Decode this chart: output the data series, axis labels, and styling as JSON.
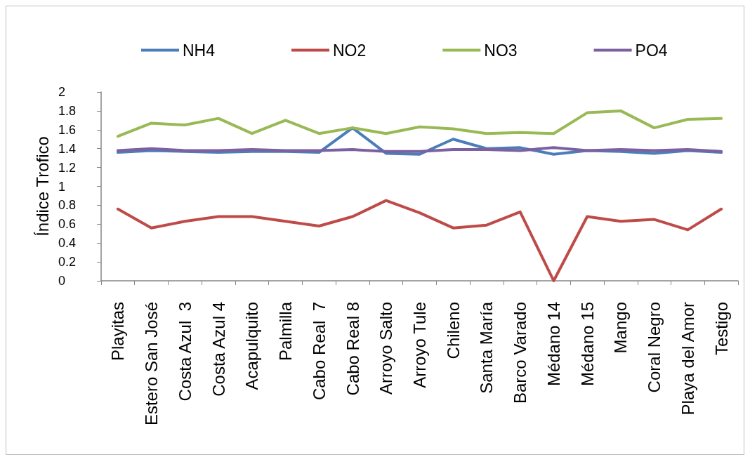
{
  "chart_data": {
    "type": "line",
    "ylabel": "Índice Trofico",
    "categories": [
      "Playitas",
      "Estero San José",
      "Costa Azul  3",
      "Costa Azul 4",
      "Acapulquito",
      "Palmilla",
      "Cabo Real  7",
      "Cabo Real 8",
      "Arroyo Salto",
      "Arroyo Tule",
      "Chileno",
      "Santa María",
      "Barco Varado",
      "Médano 14",
      "Médano 15",
      "Mango",
      "Coral Negro",
      "Playa del Amor",
      "Testigo"
    ],
    "series": [
      {
        "name": "NH4",
        "color": "#4a7ebb",
        "values": [
          1.36,
          1.38,
          1.37,
          1.36,
          1.37,
          1.37,
          1.36,
          1.62,
          1.35,
          1.34,
          1.5,
          1.4,
          1.41,
          1.34,
          1.38,
          1.37,
          1.35,
          1.38,
          1.36
        ]
      },
      {
        "name": "NO2",
        "color": "#be4b48",
        "values": [
          0.76,
          0.56,
          0.63,
          0.68,
          0.68,
          0.63,
          0.58,
          0.68,
          0.85,
          0.72,
          0.56,
          0.59,
          0.73,
          0,
          0.68,
          0.63,
          0.65,
          0.54,
          0.76
        ]
      },
      {
        "name": "NO3",
        "color": "#98b954",
        "values": [
          1.53,
          1.67,
          1.65,
          1.72,
          1.56,
          1.7,
          1.56,
          1.62,
          1.56,
          1.63,
          1.61,
          1.56,
          1.57,
          1.56,
          1.78,
          1.8,
          1.62,
          1.71,
          1.72
        ]
      },
      {
        "name": "PO4",
        "color": "#7d60a0",
        "values": [
          1.38,
          1.4,
          1.38,
          1.38,
          1.39,
          1.38,
          1.38,
          1.39,
          1.37,
          1.37,
          1.39,
          1.39,
          1.38,
          1.41,
          1.38,
          1.39,
          1.38,
          1.39,
          1.37
        ]
      }
    ],
    "ylim": [
      0,
      2
    ],
    "yticks": [
      0,
      0.2,
      0.4,
      0.6,
      0.8,
      1,
      1.2,
      1.4,
      1.6,
      1.8,
      2
    ],
    "grid": false,
    "legend": "top",
    "marker": "none",
    "line_style": "solid"
  }
}
